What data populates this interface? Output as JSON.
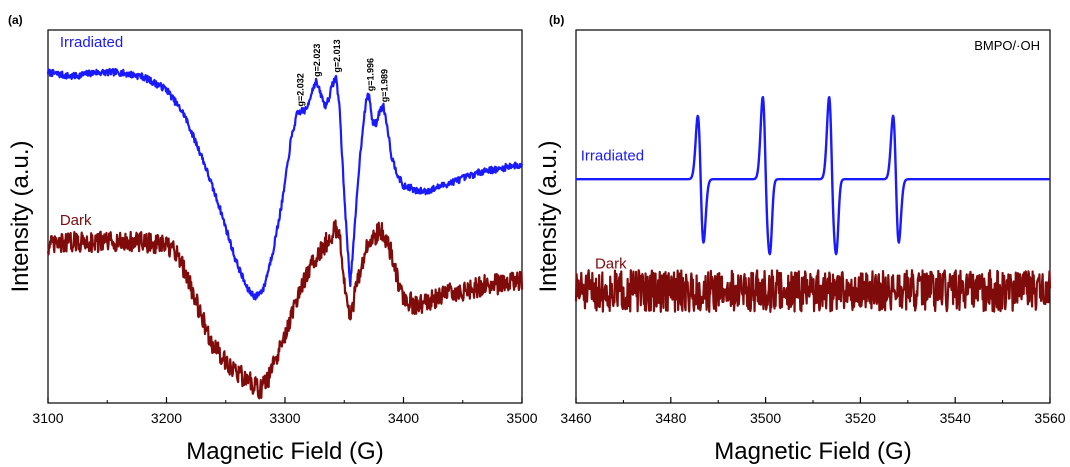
{
  "chart_data": [
    {
      "panel": "(a)",
      "type": "line",
      "xlabel": "Magnetic Field (G)",
      "ylabel": "Intensity (a.u.)",
      "xlim": [
        3100,
        3500
      ],
      "xticks": [
        3100,
        3200,
        3300,
        3400,
        3500
      ],
      "y_ticks_shown": false,
      "colors": {
        "Irradiated": "#1a1aff",
        "Dark": "#7f0b0b"
      },
      "series": [
        {
          "name": "Irradiated",
          "color": "#1a1aff",
          "label_at": [
            3110,
            0.93
          ],
          "noise": 0.004,
          "points": [
            [
              3100,
              0.9
            ],
            [
              3120,
              0.895
            ],
            [
              3140,
              0.9
            ],
            [
              3160,
              0.9
            ],
            [
              3180,
              0.895
            ],
            [
              3200,
              0.88
            ],
            [
              3215,
              0.85
            ],
            [
              3230,
              0.8
            ],
            [
              3245,
              0.74
            ],
            [
              3258,
              0.68
            ],
            [
              3268,
              0.645
            ],
            [
              3275,
              0.635
            ],
            [
              3282,
              0.645
            ],
            [
              3290,
              0.69
            ],
            [
              3298,
              0.75
            ],
            [
              3305,
              0.82
            ],
            [
              3310,
              0.85
            ],
            [
              3314,
              0.855
            ],
            [
              3318,
              0.855
            ],
            [
              3322,
              0.875
            ],
            [
              3326,
              0.89
            ],
            [
              3330,
              0.875
            ],
            [
              3334,
              0.86
            ],
            [
              3337,
              0.87
            ],
            [
              3340,
              0.885
            ],
            [
              3343,
              0.895
            ],
            [
              3346,
              0.86
            ],
            [
              3349,
              0.78
            ],
            [
              3352,
              0.71
            ],
            [
              3355,
              0.65
            ],
            [
              3358,
              0.7
            ],
            [
              3362,
              0.78
            ],
            [
              3366,
              0.84
            ],
            [
              3369,
              0.87
            ],
            [
              3371,
              0.873
            ],
            [
              3374,
              0.84
            ],
            [
              3377,
              0.84
            ],
            [
              3380,
              0.855
            ],
            [
              3383,
              0.86
            ],
            [
              3386,
              0.84
            ],
            [
              3390,
              0.8
            ],
            [
              3395,
              0.78
            ],
            [
              3400,
              0.765
            ],
            [
              3405,
              0.765
            ],
            [
              3410,
              0.76
            ],
            [
              3420,
              0.76
            ],
            [
              3430,
              0.765
            ],
            [
              3440,
              0.77
            ],
            [
              3450,
              0.775
            ],
            [
              3460,
              0.78
            ],
            [
              3470,
              0.785
            ],
            [
              3480,
              0.785
            ],
            [
              3490,
              0.79
            ],
            [
              3500,
              0.79
            ]
          ]
        },
        {
          "name": "Dark",
          "color": "#7f0b0b",
          "label_at": [
            3110,
            0.72
          ],
          "noise": 0.012,
          "points": [
            [
              3100,
              0.695
            ],
            [
              3120,
              0.7
            ],
            [
              3140,
              0.7
            ],
            [
              3160,
              0.7
            ],
            [
              3180,
              0.7
            ],
            [
              3200,
              0.695
            ],
            [
              3210,
              0.685
            ],
            [
              3220,
              0.65
            ],
            [
              3230,
              0.61
            ],
            [
              3240,
              0.575
            ],
            [
              3250,
              0.56
            ],
            [
              3260,
              0.545
            ],
            [
              3270,
              0.535
            ],
            [
              3278,
              0.525
            ],
            [
              3285,
              0.535
            ],
            [
              3295,
              0.57
            ],
            [
              3305,
              0.61
            ],
            [
              3315,
              0.65
            ],
            [
              3325,
              0.68
            ],
            [
              3335,
              0.7
            ],
            [
              3342,
              0.715
            ],
            [
              3346,
              0.705
            ],
            [
              3349,
              0.67
            ],
            [
              3352,
              0.625
            ],
            [
              3355,
              0.61
            ],
            [
              3358,
              0.63
            ],
            [
              3362,
              0.66
            ],
            [
              3368,
              0.69
            ],
            [
              3375,
              0.705
            ],
            [
              3380,
              0.715
            ],
            [
              3385,
              0.705
            ],
            [
              3390,
              0.685
            ],
            [
              3395,
              0.655
            ],
            [
              3400,
              0.635
            ],
            [
              3410,
              0.625
            ],
            [
              3420,
              0.63
            ],
            [
              3430,
              0.635
            ],
            [
              3440,
              0.64
            ],
            [
              3450,
              0.64
            ],
            [
              3460,
              0.645
            ],
            [
              3470,
              0.65
            ],
            [
              3480,
              0.65
            ],
            [
              3490,
              0.655
            ],
            [
              3500,
              0.655
            ]
          ]
        }
      ],
      "annotations": [
        {
          "text": "g=2.032",
          "x": 3313,
          "y": 0.855
        },
        {
          "text": "g=2.023",
          "x": 3327,
          "y": 0.89
        },
        {
          "text": "g=2.013",
          "x": 3344,
          "y": 0.895
        },
        {
          "text": "g=1.996",
          "x": 3372,
          "y": 0.873
        },
        {
          "text": "g=1.989",
          "x": 3384,
          "y": 0.86
        }
      ],
      "ylim": [
        0.51,
        0.95
      ]
    },
    {
      "panel": "(b)",
      "type": "line",
      "xlabel": "Magnetic Field (G)",
      "ylabel": "Intensity (a.u.)",
      "xlim": [
        3460,
        3560
      ],
      "xticks": [
        3460,
        3480,
        3500,
        3520,
        3540,
        3560
      ],
      "y_ticks_shown": false,
      "corner_label": "BMPO/·OH",
      "colors": {
        "Irradiated": "#1a1aff",
        "Dark": "#7f0b0b"
      },
      "series": [
        {
          "name": "Irradiated",
          "color": "#1a1aff",
          "label_at": [
            3461,
            0.775
          ],
          "baseline": 0.75,
          "noise": 0,
          "lines": [
            {
              "center": 3486.3,
              "amplitude": 0.085,
              "width": 0.6
            },
            {
              "center": 3500.0,
              "amplitude": 0.11,
              "width": 0.6
            },
            {
              "center": 3500.8,
              "amplitude": 0.03,
              "width": 0.4
            },
            {
              "center": 3514.0,
              "amplitude": 0.11,
              "width": 0.6
            },
            {
              "center": 3514.8,
              "amplitude": 0.03,
              "width": 0.4
            },
            {
              "center": 3527.5,
              "amplitude": 0.085,
              "width": 0.6
            }
          ]
        },
        {
          "name": "Dark",
          "color": "#7f0b0b",
          "label_at": [
            3464,
            0.63
          ],
          "baseline": 0.6,
          "noise": 0.028,
          "points": [
            [
              3460,
              0.6
            ],
            [
              3560,
              0.6
            ]
          ]
        }
      ],
      "ylim": [
        0.45,
        0.95
      ]
    }
  ]
}
